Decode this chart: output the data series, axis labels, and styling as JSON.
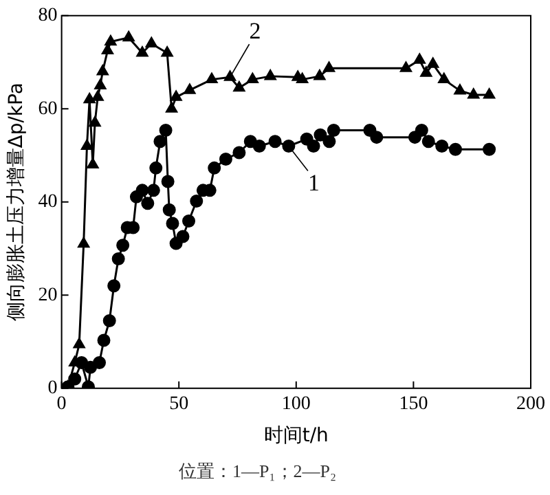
{
  "chart_data": {
    "type": "line",
    "xlabel": "时间t/h",
    "ylabel": "侧向膨胀土压力增量Δp/kPa",
    "xlim": [
      0,
      200
    ],
    "xticks": [
      0,
      50,
      100,
      150,
      200
    ],
    "ylim": [
      0,
      80
    ],
    "yticks": [
      0,
      20,
      40,
      60,
      80
    ],
    "grid": false,
    "line_style": "solid",
    "series": [
      {
        "name": "1",
        "color": "#000000",
        "marker": "circle",
        "x": [
          2.7,
          5.6,
          8.5,
          11.4,
          12.3,
          16.1,
          18,
          20.4,
          22.3,
          24.2,
          26.1,
          28,
          30.5,
          31.9,
          34.4,
          36.7,
          39.2,
          40.2,
          42,
          44.4,
          45.3,
          45.9,
          47.3,
          48.8,
          51.7,
          54.2,
          57.5,
          60.3,
          63.2,
          65.1,
          70,
          75.7,
          80.5,
          84.3,
          91,
          96.8,
          104.5,
          107.4,
          110.3,
          114.1,
          116,
          131.4,
          134.3,
          150.6,
          153.5,
          156.4,
          162.1,
          167.9,
          182.3
        ],
        "values": [
          0.3,
          2,
          5.5,
          0.3,
          4.5,
          5.5,
          10.3,
          14.5,
          22,
          27.8,
          30.7,
          34.5,
          34.5,
          41.1,
          42.5,
          39.7,
          42.5,
          47.3,
          53,
          55.4,
          44.4,
          38.3,
          35.4,
          31.1,
          32.6,
          35.9,
          40.2,
          42.5,
          42.5,
          47.3,
          49.2,
          50.6,
          53,
          52,
          53,
          52,
          53.5,
          52,
          54.4,
          53,
          55.4,
          55.4,
          53.9,
          53.9,
          55.4,
          53,
          52,
          51.3,
          51.3
        ]
      },
      {
        "name": "2",
        "color": "#000000",
        "marker": "triangle",
        "x": [
          2.7,
          5.6,
          7.5,
          9.4,
          10.8,
          11.9,
          13.3,
          14.2,
          15.4,
          16.5,
          17.5,
          19.6,
          20.9,
          28.6,
          34.4,
          38.3,
          45,
          46.9,
          48.8,
          54.6,
          64,
          71.8,
          75.7,
          81.4,
          89,
          100.7,
          102.6,
          110,
          114,
          146.8,
          152.6,
          155.4,
          158.3,
          163,
          169.8,
          175.6,
          182.3
        ],
        "values": [
          0.3,
          5.5,
          9.4,
          31,
          52,
          62,
          48,
          57,
          62.5,
          65,
          68,
          72.5,
          74.4,
          75.3,
          72,
          74,
          72,
          60,
          62.5,
          64,
          66.3,
          66.8,
          64.5,
          66.3,
          67,
          66.8,
          66.3,
          67,
          68.7,
          68.7,
          70.5,
          67.7,
          69.6,
          66.3,
          63.9,
          63,
          63
        ]
      }
    ],
    "annotations": [
      "位置：1—P₁；2—P₂"
    ]
  }
}
